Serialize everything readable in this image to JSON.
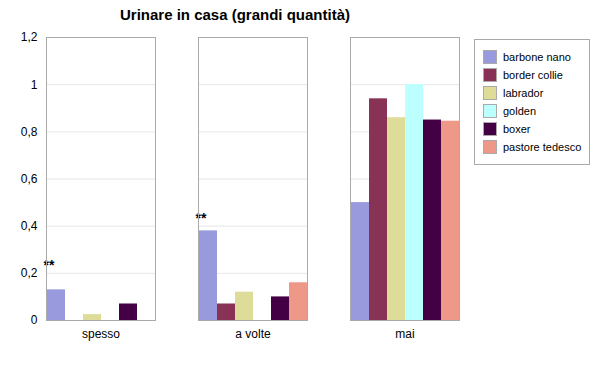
{
  "chart_data": {
    "type": "bar",
    "title": "Urinare in casa (grandi quantità)",
    "categories": [
      "spesso",
      "a volte",
      "mai"
    ],
    "series": [
      {
        "name": "barbone nano",
        "color": "#9999dd",
        "values": [
          0.13,
          0.38,
          0.5
        ]
      },
      {
        "name": "border collie",
        "color": "#883355",
        "values": [
          0.0,
          0.07,
          0.94
        ]
      },
      {
        "name": "labrador",
        "color": "#dddd99",
        "values": [
          0.025,
          0.12,
          0.86
        ]
      },
      {
        "name": "golden",
        "color": "#bbffff",
        "values": [
          0.0,
          0.0,
          1.0
        ]
      },
      {
        "name": "boxer",
        "color": "#440044",
        "values": [
          0.07,
          0.1,
          0.85
        ]
      },
      {
        "name": "pastore tedesco",
        "color": "#ee9988",
        "values": [
          0.0,
          0.16,
          0.845
        ]
      }
    ],
    "ylim": [
      0,
      1.2
    ],
    "yticks": [
      0,
      {
        "value": 0.2,
        "label": "0,2"
      },
      {
        "value": 0.4,
        "label": "0,4"
      },
      {
        "value": 0.6,
        "label": "0,6"
      },
      {
        "value": 0.8,
        "label": "0,8"
      },
      1,
      {
        "value": 1.2,
        "label": "1,2"
      }
    ],
    "annotations": [
      {
        "text": "**",
        "category": "spesso",
        "y": 0.215
      },
      {
        "text": "**",
        "category": "a volte",
        "y": 0.415
      }
    ],
    "grid": true,
    "legend": "right"
  }
}
